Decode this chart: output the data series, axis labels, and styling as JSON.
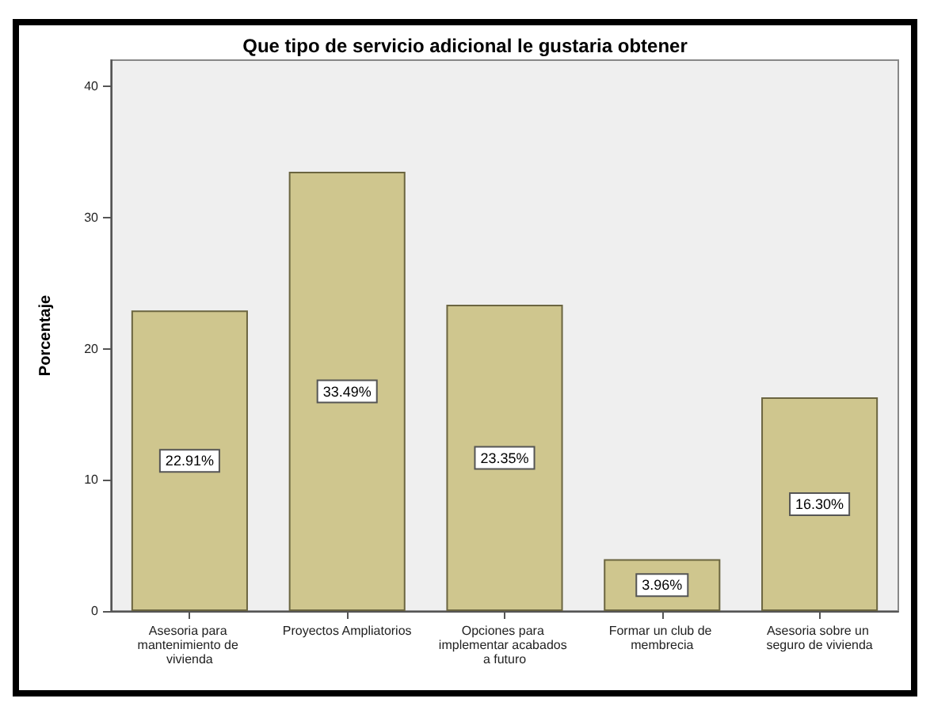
{
  "chart_data": {
    "type": "bar",
    "title": "Que tipo de servicio adicional le gustaria obtener",
    "ylabel": "Porcentaje",
    "categories": [
      "Asesoria para mantenimiento de vivienda",
      "Proyectos Ampliatorios",
      "Opciones para implementar acabados a futuro",
      "Formar un club de membrecia",
      "Asesoria sobre un seguro de vivienda"
    ],
    "values": [
      22.91,
      33.49,
      23.35,
      3.96,
      16.3
    ],
    "value_labels": [
      "22.91%",
      "33.49%",
      "23.35%",
      "3.96%",
      "16.30%"
    ],
    "color": "#cfc68e",
    "ylim": [
      0,
      42
    ],
    "yticks": [
      0,
      10,
      20,
      30,
      40
    ],
    "grid": false
  }
}
